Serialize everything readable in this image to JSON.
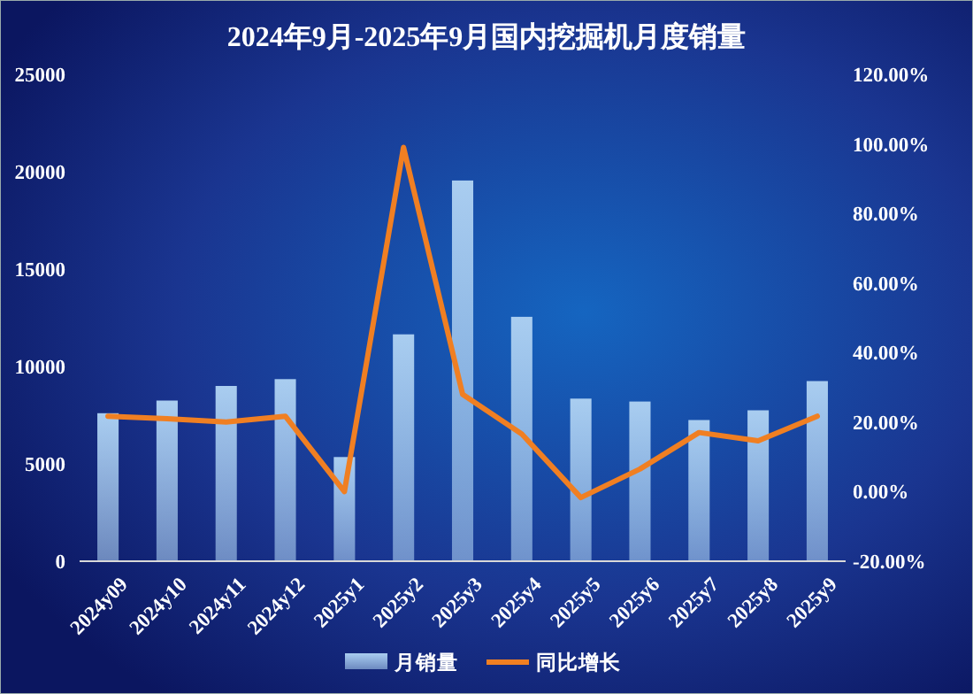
{
  "chart_data": {
    "type": "bar",
    "title": "2024年9月-2025年9月国内挖掘机月度销量",
    "categories": [
      "2024y09",
      "2024y10",
      "2024y11",
      "2024y12",
      "2025y1",
      "2025y2",
      "2025y3",
      "2025y4",
      "2025y5",
      "2025y6",
      "2025y7",
      "2025y8",
      "2025y9"
    ],
    "series": [
      {
        "name": "月销量",
        "color": "#a9cdf0",
        "values": [
          7600,
          8250,
          9000,
          9350,
          5350,
          11650,
          19550,
          12550,
          8350,
          8200,
          7250,
          7750,
          9250
        ]
      },
      {
        "name": "同比增长",
        "type": "line",
        "axis": "y2",
        "color": "#f07f22",
        "values": [
          21.7,
          21,
          20,
          21.7,
          0,
          99,
          28,
          16.6,
          -1.7,
          6.5,
          17,
          14.6,
          21.7
        ]
      }
    ],
    "ylim": [
      0,
      25000
    ],
    "yticks": [
      0,
      5000,
      10000,
      15000,
      20000,
      25000
    ],
    "y2lim": [
      -20,
      120
    ],
    "y2ticks": [
      {
        "value": -20,
        "label": "-20.00%"
      },
      {
        "value": 0,
        "label": "0.00%"
      },
      {
        "value": 20,
        "label": "20.00%"
      },
      {
        "value": 40,
        "label": "40.00%"
      },
      {
        "value": 60,
        "label": "60.00%"
      },
      {
        "value": 80,
        "label": "80.00%"
      },
      {
        "value": 100,
        "label": "100.00%"
      },
      {
        "value": 120,
        "label": "120.00%"
      }
    ],
    "grid": false,
    "legend": "bottom",
    "marker": "none",
    "line_style": "solid"
  }
}
